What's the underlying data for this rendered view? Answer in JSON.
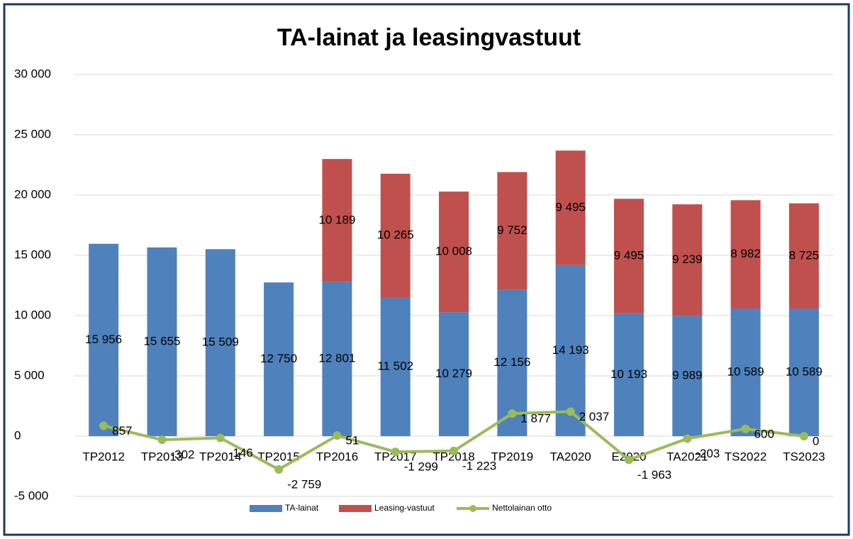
{
  "chart_data": {
    "type": "bar",
    "title": "TA-lainat ja leasingvastuut",
    "categories": [
      "TP2012",
      "TP2013",
      "TP2014",
      "TP2015",
      "TP2016",
      "TP2017",
      "TP2018",
      "TP2019",
      "TA2020",
      "E2020",
      "TA2021",
      "TS2022",
      "TS2023"
    ],
    "stacked": true,
    "series": [
      {
        "name": "TA-lainat",
        "type": "bar",
        "color": "#4f81bd",
        "values": [
          15956,
          15655,
          15509,
          12750,
          12801,
          11502,
          10279,
          12156,
          14193,
          10193,
          9989,
          10589,
          10589
        ],
        "value_labels": [
          "15 956",
          "15 655",
          "15 509",
          "12 750",
          "12 801",
          "11 502",
          "10 279",
          "12 156",
          "14 193",
          "10 193",
          "9 989",
          "10 589",
          "10 589"
        ]
      },
      {
        "name": "Leasing-vastuut",
        "type": "bar",
        "color": "#c0504d",
        "values": [
          null,
          null,
          null,
          null,
          10189,
          10265,
          10008,
          9752,
          9495,
          9495,
          9239,
          8982,
          8725
        ],
        "value_labels": [
          null,
          null,
          null,
          null,
          "10 189",
          "10 265",
          "10 008",
          "9 752",
          "9 495",
          "9 495",
          "9 239",
          "8 982",
          "8 725"
        ]
      },
      {
        "name": "Nettolainan otto",
        "type": "line",
        "color": "#9bbb59",
        "values": [
          857,
          -302,
          -146,
          -2759,
          51,
          -1299,
          -1223,
          1877,
          2037,
          -1963,
          -203,
          600,
          0
        ],
        "value_labels": [
          "857",
          "-302",
          "-146",
          "-2 759",
          "51",
          "-1 299",
          "-1 223",
          "1 877",
          "2 037",
          "-1 963",
          "-203",
          "600",
          0
        ]
      }
    ],
    "ylim": [
      -5000,
      30000
    ],
    "yticks": [
      {
        "value": -5000,
        "label": "-5 000"
      },
      0,
      {
        "value": 5000,
        "label": "5 000"
      },
      {
        "value": 10000,
        "label": "10 000"
      },
      {
        "value": 15000,
        "label": "15 000"
      },
      {
        "value": 20000,
        "label": "20 000"
      },
      {
        "value": 25000,
        "label": "25 000"
      },
      {
        "value": 30000,
        "label": "30 000"
      }
    ],
    "grid": true,
    "legend": "bottom"
  }
}
